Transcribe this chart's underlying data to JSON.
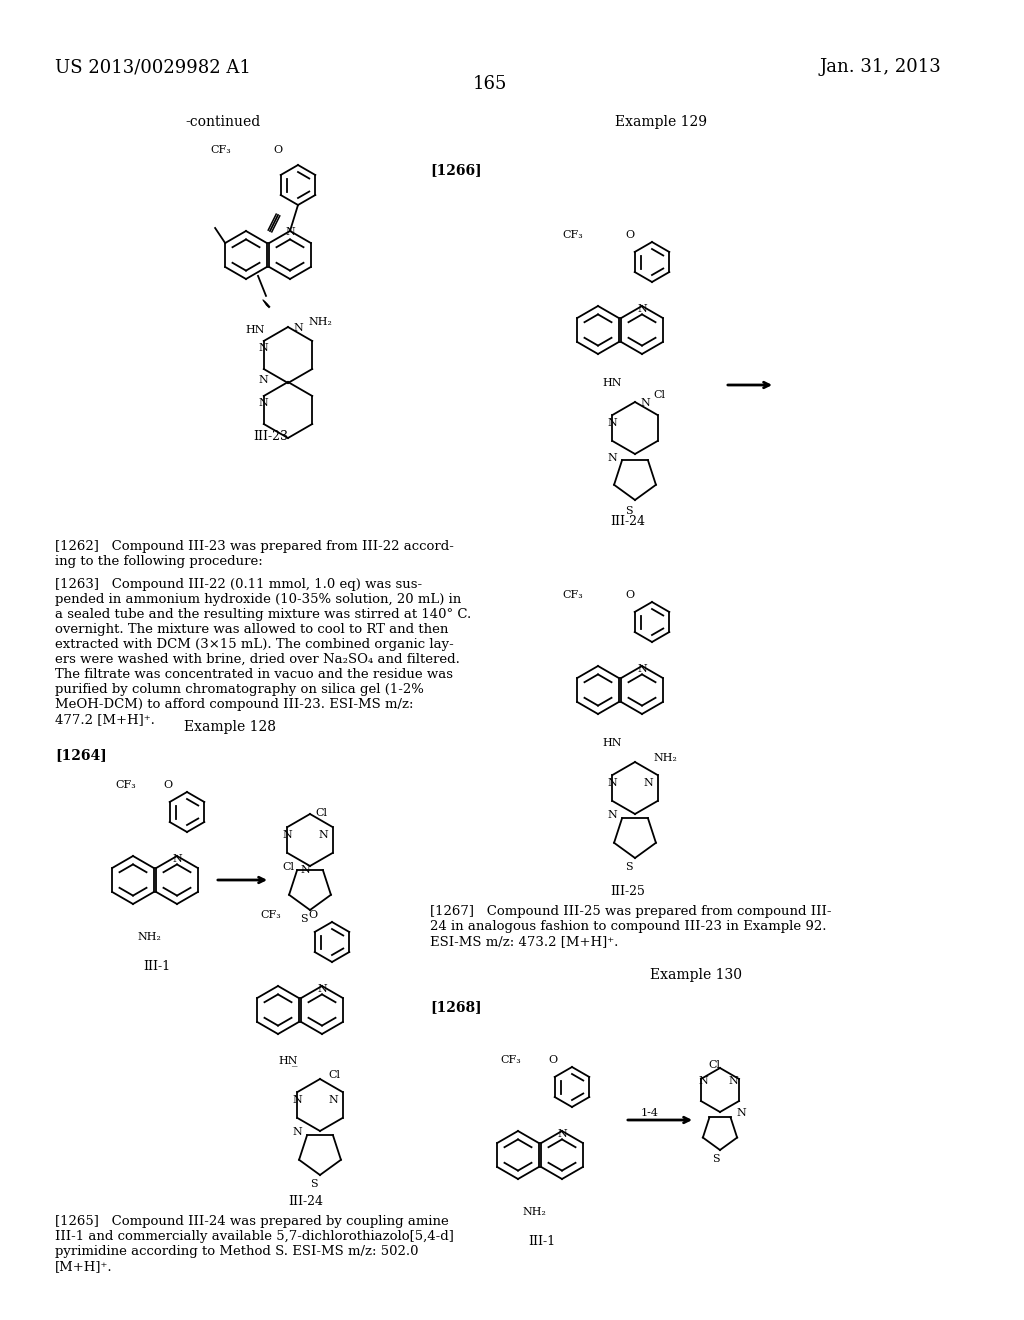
{
  "page_header_left": "US 2013/0029982 A1",
  "page_header_right": "Jan. 31, 2013",
  "page_number": "165",
  "background_color": "#ffffff",
  "text_color": "#000000",
  "font_size_header": 13,
  "font_size_body": 9.5,
  "font_size_label": 9,
  "font_size_title": 10,
  "continued_label": "-continued",
  "example_129": "Example 129",
  "example_128": "Example 128",
  "example_130": "Example 130",
  "ref_1266": "[1266]",
  "ref_1264": "[1264]",
  "ref_1268": "[1268]",
  "ref_1262": "[1262]",
  "ref_1263": "[1263]",
  "ref_1265": "[1265]",
  "ref_1267": "[1267]",
  "compound_III_23": "III-23",
  "compound_III_24": "III-24",
  "compound_III_25": "III-25",
  "compound_III_1": "III-1",
  "text_1262": "[1262] Compound III-23 was prepared from III-22 accord-\ning to the following procedure:",
  "text_1263": "[1263] Compound III-22 (0.11 mmol, 1.0 eq) was sus-\npended in ammonium hydroxide (10-35% solution, 20 mL) in\na sealed tube and the resulting mixture was stirred at 140° C.\novernight. The mixture was allowed to cool to RT and then\nextracted with DCM (3×15 mL). The combined organic lay-\ners were washed with brine, dried over Na₂SO₄ and filtered.\nThe filtrate was concentrated in vacuo and the residue was\npurified by column chromatography on silica gel (1-2%\nMeOH-DCM) to afford compound III-23. ESI-MS m/z:\n477.2 [M+H]⁺.",
  "text_1265": "[1265] Compound III-24 was prepared by coupling amine\nIII-1 and commercially available 5,7-dichlorothiazolo[5,4-d]\npyrimidine according to Method S. ESI-MS m/z: 502.0\n[M+H]⁺.",
  "text_1267": "[1267] Compound III-25 was prepared from compound III-\n24 in analogous fashion to compound III-23 in Example 92.\nESI-MS m/z: 473.2 [M+H]⁺."
}
